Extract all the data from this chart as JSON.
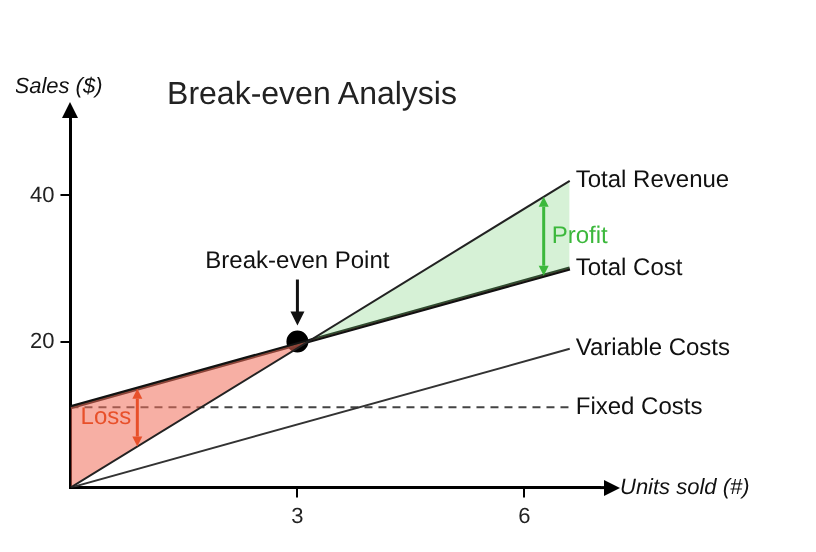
{
  "chart_data": {
    "type": "line",
    "title": "Break-even Analysis",
    "xlabel": "Units sold (#)",
    "ylabel": "Sales ($)",
    "xlim": [
      0,
      7
    ],
    "xticks": [
      3,
      6
    ],
    "ylim": [
      0,
      50
    ],
    "yticks": [
      20,
      40
    ],
    "grid": false,
    "legend": false,
    "series": [
      {
        "name": "Total Revenue",
        "color": "#222222",
        "x": [
          0,
          6.6
        ],
        "values": [
          0,
          42
        ]
      },
      {
        "name": "Total Cost",
        "color": "#111111",
        "x": [
          0,
          6.6
        ],
        "values": [
          11,
          30
        ]
      },
      {
        "name": "Variable Costs",
        "color": "#333333",
        "x": [
          0,
          6.6
        ],
        "values": [
          0,
          19
        ]
      },
      {
        "name": "Fixed Costs",
        "color": "#444444",
        "x": [
          0,
          6.6
        ],
        "values": [
          11,
          11
        ],
        "line_style": "dashed"
      },
      {
        "type": "scatter",
        "color": "#000000",
        "x": [
          3
        ],
        "values": [
          20
        ],
        "marker": "circle"
      }
    ],
    "annotations": [
      {
        "text": "Break-even Point",
        "x": 3,
        "y": 20
      },
      "Loss",
      "Profit"
    ]
  }
}
